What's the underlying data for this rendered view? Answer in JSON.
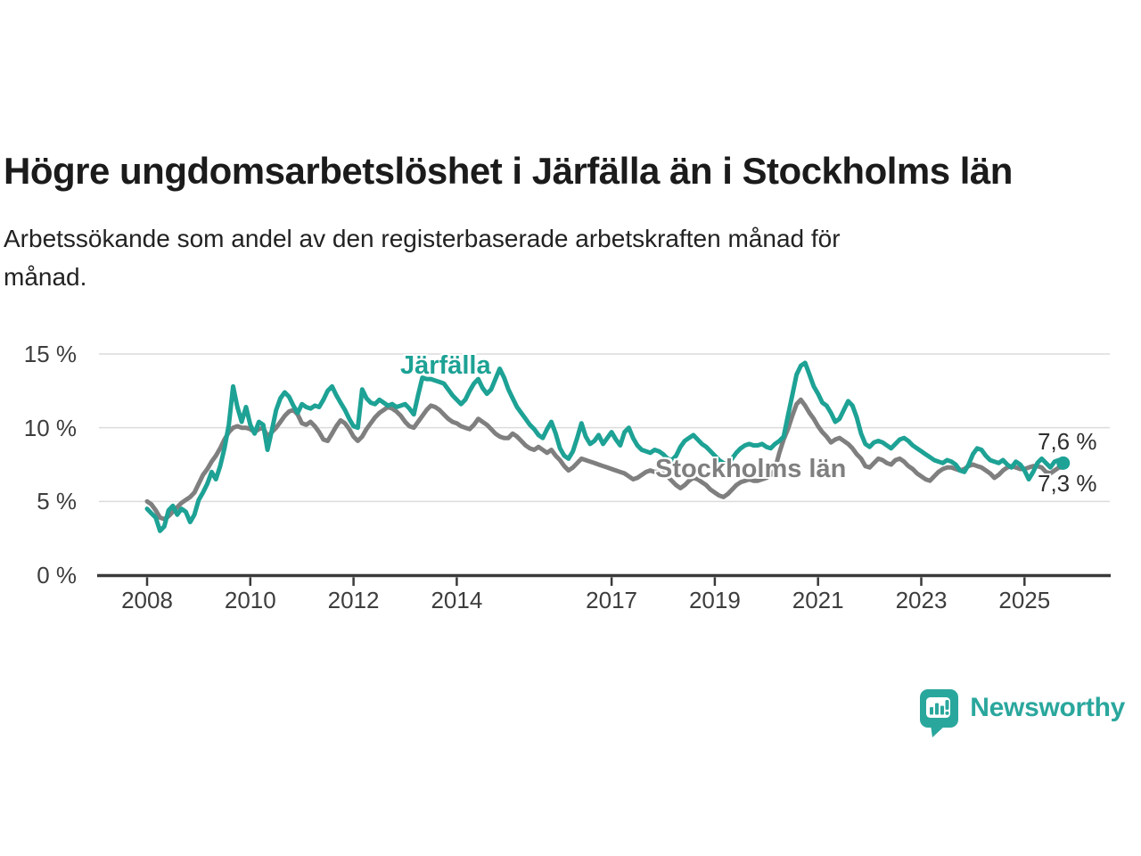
{
  "header": {
    "title": "Högre ungdomsarbetslöshet i Järfälla än i Stockholms län",
    "subtitle_lines": {
      "0": "Arbetssökande som andel av den registerbaserade arbetskraften månad för",
      "1": "månad."
    }
  },
  "chart": {
    "series_labels": {
      "jarfalla": "Järfälla",
      "stockholm": "Stockholms län"
    },
    "end_labels": {
      "jarfalla": "7,6 %",
      "stockholm": "7,3 %"
    }
  },
  "footer": {
    "brand": "Newsworthy"
  },
  "colors": {
    "jarfalla": "#1da295",
    "stockholm": "#7f7f7f",
    "brand": "#2aa79d",
    "gridline": "#dcdcdc",
    "axis": "#3a3a3a",
    "axis_text": "#3d3d3d"
  },
  "chart_data": {
    "type": "line",
    "title": "Högre ungdomsarbetslöshet i Järfälla än i Stockholms län",
    "subtitle": "Arbetssökande som andel av den registerbaserade arbetskraften månad för månad.",
    "unit": "%",
    "x_start": "2008-01",
    "x_end": "2025-10",
    "frequency": "monthly",
    "grid": "horizontal",
    "legend_position": "inline-labels",
    "ylim": [
      0,
      15.5
    ],
    "y_ticks": [
      {
        "value": 15,
        "label": "15 %"
      },
      {
        "value": 10,
        "label": "10 %"
      },
      {
        "value": 5,
        "label": "5 %"
      },
      {
        "value": 0,
        "label": "0 %"
      }
    ],
    "x_ticks": [
      {
        "year": 2008,
        "label": "2008"
      },
      {
        "year": 2010,
        "label": "2010"
      },
      {
        "year": 2012,
        "label": "2012"
      },
      {
        "year": 2014,
        "label": "2014"
      },
      {
        "year": 2017,
        "label": "2017"
      },
      {
        "year": 2019,
        "label": "2019"
      },
      {
        "year": 2021,
        "label": "2021"
      },
      {
        "year": 2023,
        "label": "2023"
      },
      {
        "year": 2025,
        "label": "2025"
      }
    ],
    "series": [
      {
        "name": "Järfälla",
        "color": "#1da295",
        "end_value": 7.6,
        "end_value_label": "7,6 %",
        "values": [
          4.5,
          4.2,
          3.9,
          3.0,
          3.3,
          4.4,
          4.7,
          4.1,
          4.5,
          4.3,
          3.6,
          4.1,
          5.1,
          5.6,
          6.2,
          7.0,
          6.5,
          7.4,
          8.6,
          10.2,
          12.8,
          11.4,
          10.4,
          11.4,
          10.2,
          9.6,
          10.4,
          10.2,
          8.5,
          9.8,
          11.2,
          12.0,
          12.4,
          12.1,
          11.5,
          11.0,
          11.6,
          11.4,
          11.3,
          11.5,
          11.4,
          11.9,
          12.5,
          12.8,
          12.2,
          11.7,
          11.2,
          10.6,
          10.1,
          10.0,
          12.6,
          12.0,
          11.7,
          11.6,
          11.9,
          11.7,
          11.5,
          11.6,
          11.4,
          11.5,
          11.6,
          11.3,
          10.9,
          12.2,
          13.4,
          13.3,
          13.3,
          13.2,
          13.1,
          13.0,
          12.6,
          12.2,
          11.9,
          11.6,
          11.9,
          12.5,
          13.0,
          13.3,
          12.7,
          12.3,
          12.6,
          13.3,
          14.0,
          13.4,
          12.6,
          12.0,
          11.4,
          11.0,
          10.6,
          10.2,
          9.9,
          9.5,
          9.3,
          9.9,
          10.4,
          9.6,
          8.6,
          8.1,
          7.9,
          8.4,
          9.3,
          10.3,
          9.4,
          8.9,
          9.1,
          9.5,
          8.9,
          9.3,
          9.7,
          9.2,
          8.8,
          9.7,
          10.0,
          9.3,
          8.8,
          8.5,
          8.4,
          8.3,
          8.5,
          8.4,
          8.2,
          7.9,
          7.8,
          8.1,
          8.7,
          9.1,
          9.3,
          9.5,
          9.2,
          8.9,
          8.7,
          8.4,
          8.1,
          7.8,
          7.6,
          7.5,
          7.9,
          8.3,
          8.6,
          8.8,
          8.9,
          8.8,
          8.8,
          8.9,
          8.7,
          8.6,
          8.9,
          9.1,
          9.4,
          10.8,
          12.2,
          13.6,
          14.2,
          14.4,
          13.6,
          12.8,
          12.3,
          11.7,
          11.5,
          11.0,
          10.4,
          10.6,
          11.2,
          11.8,
          11.5,
          10.7,
          9.6,
          8.9,
          8.7,
          9.0,
          9.1,
          9.0,
          8.8,
          8.6,
          8.9,
          9.2,
          9.3,
          9.1,
          8.8,
          8.6,
          8.4,
          8.2,
          8.0,
          7.8,
          7.7,
          7.6,
          7.8,
          7.7,
          7.5,
          7.1,
          7.0,
          7.5,
          8.2,
          8.6,
          8.5,
          8.1,
          7.8,
          7.7,
          7.6,
          7.8,
          7.5,
          7.3,
          7.7,
          7.5,
          7.1,
          6.5,
          7.0,
          7.6,
          7.9,
          7.6,
          7.3,
          7.7,
          7.8,
          7.6
        ]
      },
      {
        "name": "Stockholms län",
        "color": "#7f7f7f",
        "end_value": 7.3,
        "end_value_label": "7,3 %",
        "values": [
          5.0,
          4.8,
          4.4,
          3.9,
          3.8,
          4.0,
          4.3,
          4.6,
          4.9,
          5.1,
          5.3,
          5.6,
          6.2,
          6.8,
          7.2,
          7.7,
          8.1,
          8.6,
          9.2,
          9.7,
          10.0,
          10.1,
          10.0,
          10.0,
          9.9,
          9.7,
          9.9,
          10.0,
          9.4,
          9.7,
          10.0,
          10.4,
          10.8,
          11.1,
          11.2,
          10.9,
          10.3,
          10.2,
          10.4,
          10.1,
          9.7,
          9.2,
          9.1,
          9.6,
          10.1,
          10.5,
          10.3,
          9.9,
          9.4,
          9.1,
          9.4,
          9.9,
          10.3,
          10.7,
          11.0,
          11.2,
          11.4,
          11.3,
          11.1,
          10.8,
          10.4,
          10.1,
          10.0,
          10.4,
          10.8,
          11.2,
          11.5,
          11.4,
          11.2,
          10.9,
          10.6,
          10.4,
          10.3,
          10.1,
          10.0,
          9.9,
          10.2,
          10.6,
          10.4,
          10.2,
          9.9,
          9.6,
          9.4,
          9.3,
          9.3,
          9.6,
          9.4,
          9.1,
          8.8,
          8.6,
          8.5,
          8.7,
          8.5,
          8.3,
          8.5,
          8.1,
          7.8,
          7.4,
          7.1,
          7.3,
          7.6,
          7.9,
          7.8,
          7.7,
          7.6,
          7.5,
          7.4,
          7.3,
          7.2,
          7.1,
          7.0,
          6.9,
          6.7,
          6.5,
          6.6,
          6.8,
          7.0,
          7.1,
          7.0,
          7.0,
          6.9,
          6.7,
          6.4,
          6.1,
          5.9,
          6.1,
          6.4,
          6.6,
          6.5,
          6.3,
          6.1,
          5.8,
          5.6,
          5.4,
          5.3,
          5.5,
          5.8,
          6.1,
          6.3,
          6.4,
          6.5,
          6.4,
          6.4,
          6.5,
          6.6,
          6.8,
          7.2,
          8.3,
          9.2,
          9.9,
          10.8,
          11.6,
          11.9,
          11.5,
          11.0,
          10.6,
          10.1,
          9.7,
          9.4,
          9.0,
          9.2,
          9.3,
          9.1,
          8.9,
          8.6,
          8.2,
          7.9,
          7.4,
          7.3,
          7.6,
          7.9,
          7.8,
          7.6,
          7.5,
          7.8,
          7.9,
          7.7,
          7.4,
          7.2,
          6.9,
          6.7,
          6.5,
          6.4,
          6.7,
          7.0,
          7.2,
          7.3,
          7.3,
          7.2,
          7.1,
          7.2,
          7.4,
          7.5,
          7.4,
          7.3,
          7.1,
          6.9,
          6.6,
          6.8,
          7.1,
          7.3,
          7.4,
          7.3,
          7.2,
          7.2,
          7.3,
          7.4,
          7.4,
          7.3,
          7.0,
          6.9,
          7.1,
          7.3,
          7.3
        ]
      }
    ]
  }
}
